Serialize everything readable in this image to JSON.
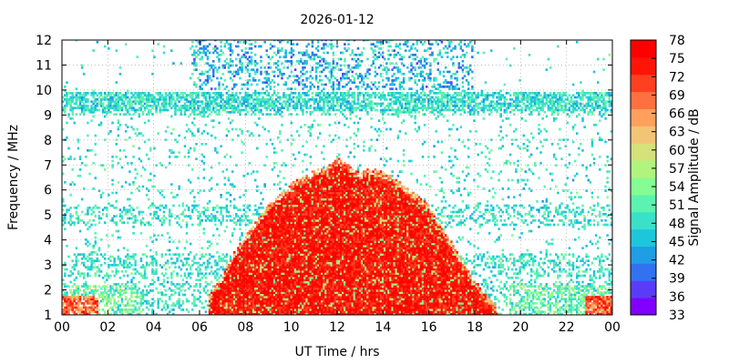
{
  "chart_data": {
    "type": "heatmap",
    "title": "2026-01-12",
    "xlabel": "UT Time / hrs",
    "ylabel": "Frequency / MHz",
    "colorbar_label": "Signal Amplitude / dB",
    "xlim": [
      0,
      24
    ],
    "ylim": [
      1,
      12
    ],
    "x_ticks": [
      "00",
      "02",
      "04",
      "06",
      "08",
      "10",
      "12",
      "14",
      "16",
      "18",
      "20",
      "22",
      "00"
    ],
    "y_ticks": [
      "1",
      "2",
      "3",
      "4",
      "5",
      "6",
      "7",
      "8",
      "9",
      "10",
      "11",
      "12"
    ],
    "colorbar": {
      "min": 33,
      "max": 78,
      "ticks": [
        "33",
        "36",
        "39",
        "42",
        "45",
        "48",
        "51",
        "54",
        "57",
        "60",
        "63",
        "66",
        "69",
        "72",
        "75",
        "78"
      ],
      "colors": [
        "#7f00ff",
        "#5a3cf8",
        "#3272f0",
        "#1f9ee6",
        "#1ec6dc",
        "#3ae0c8",
        "#5cf2b0",
        "#86fc94",
        "#b0f47e",
        "#d4e27a",
        "#f2c476",
        "#ffa05c",
        "#ff7040",
        "#ff4020",
        "#ff1408",
        "#ff0000"
      ]
    },
    "grid": true,
    "legend": "colorbar-right",
    "features": {
      "background_bands_mhz": [
        1.8,
        3.0,
        5.0,
        9.4
      ],
      "noise_band_mhz": [
        9.2,
        9.9
      ],
      "dense_top_hours": [
        5.6,
        17.9
      ],
      "intense_region": {
        "peak_mhz": 7.3,
        "hours": [
          6.5,
          19.0
        ],
        "envelope": [
          [
            6.4,
            1.8
          ],
          [
            7.0,
            2.6
          ],
          [
            7.5,
            3.5
          ],
          [
            8.0,
            4.2
          ],
          [
            8.5,
            4.8
          ],
          [
            9.0,
            5.4
          ],
          [
            9.6,
            5.9
          ],
          [
            10.0,
            6.3
          ],
          [
            10.5,
            6.5
          ],
          [
            11.0,
            6.8
          ],
          [
            11.5,
            6.9
          ],
          [
            12.0,
            7.3
          ],
          [
            12.5,
            7.0
          ],
          [
            13.0,
            6.7
          ],
          [
            13.5,
            6.9
          ],
          [
            14.0,
            6.7
          ],
          [
            14.5,
            6.5
          ],
          [
            15.0,
            6.1
          ],
          [
            15.5,
            5.8
          ],
          [
            16.0,
            5.4
          ],
          [
            16.5,
            4.6
          ],
          [
            17.0,
            3.9
          ],
          [
            17.5,
            3.1
          ],
          [
            18.0,
            2.4
          ],
          [
            18.5,
            1.8
          ],
          [
            19.0,
            1.3
          ]
        ]
      }
    }
  }
}
